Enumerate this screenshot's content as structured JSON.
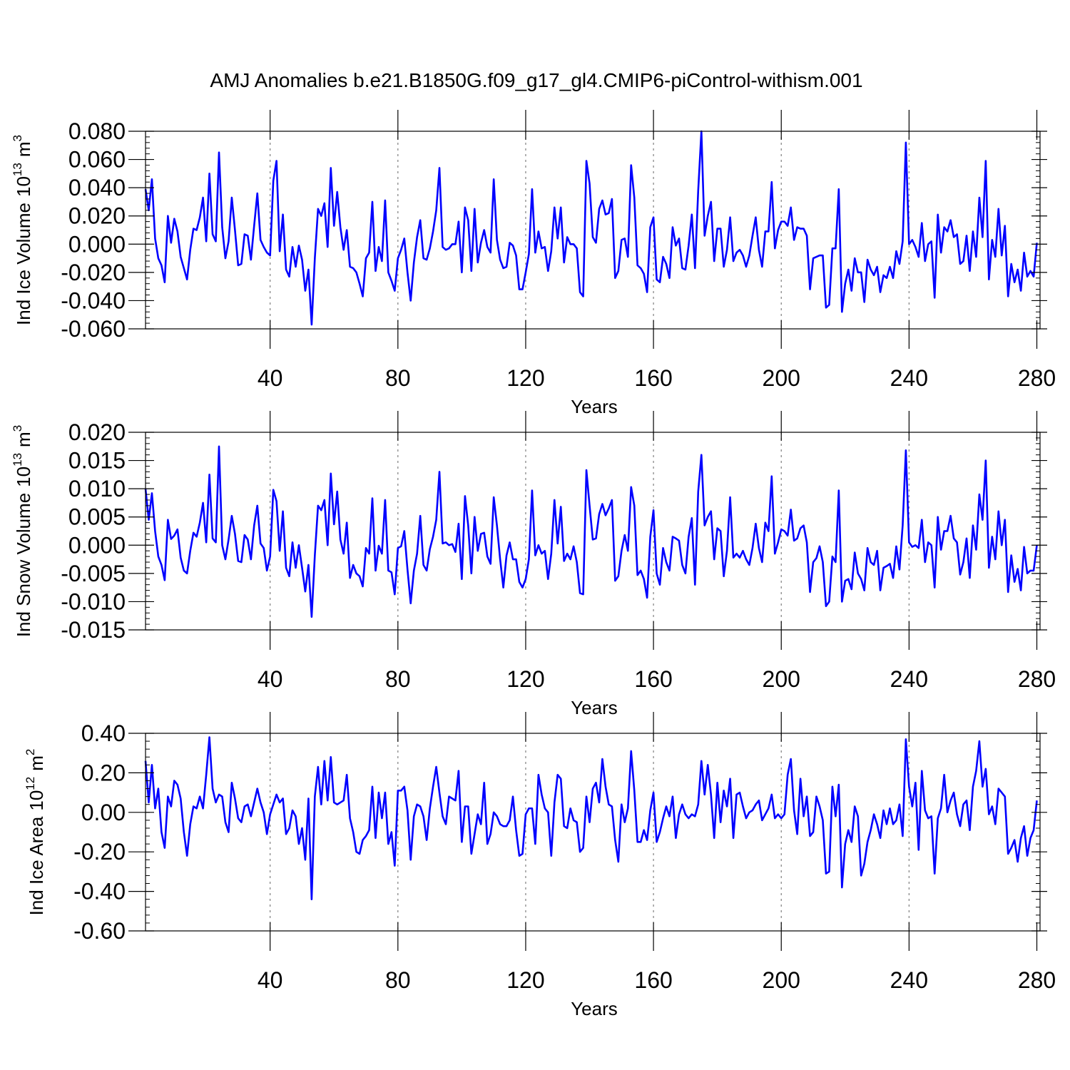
{
  "title": "AMJ Anomalies b.e21.B1850G.f09_g17_gl4.CMIP6-piControl-withism.001",
  "colors": {
    "line": "#0000ff",
    "axis": "#000000",
    "grid": "#7f7f7f"
  },
  "chart_data": [
    {
      "type": "line",
      "id": "ice-volume",
      "ylabel": "Ind Ice Volume",
      "ylabel_unit": {
        "base": "10",
        "exp": "13",
        "unit": "m",
        "unit_exp": "3"
      },
      "xlabel": "Years",
      "xlim": [
        1,
        281
      ],
      "ylim": [
        -0.06,
        0.08
      ],
      "xticks": [
        40,
        80,
        120,
        160,
        200,
        240,
        280
      ],
      "xtick_labels": [
        "40",
        "80",
        "120",
        "160",
        "200",
        "240",
        "280"
      ],
      "yticks": [
        -0.06,
        -0.04,
        -0.02,
        0.0,
        0.02,
        0.04,
        0.06,
        0.08
      ],
      "ytick_labels": [
        "-0.060",
        "-0.040",
        "-0.020",
        "0.000",
        "0.020",
        "0.040",
        "0.060",
        "0.080"
      ],
      "grid_x": [
        40,
        80,
        120,
        160,
        200,
        240
      ],
      "series": [
        {
          "name": "Ind Ice Volume",
          "x_start": 1,
          "values": [
            0.039,
            0.024,
            0.046,
            0.004,
            -0.01,
            -0.015,
            -0.027,
            0.02,
            0.001,
            0.018,
            0.009,
            -0.009,
            -0.017,
            -0.025,
            -0.004,
            0.011,
            0.01,
            0.019,
            0.033,
            0.002,
            0.05,
            0.007,
            0.002,
            0.065,
            0.012,
            -0.01,
            0.002,
            0.033,
            0.01,
            -0.015,
            -0.014,
            0.007,
            0.006,
            -0.011,
            0.013,
            0.036,
            0.003,
            -0.002,
            -0.006,
            -0.008,
            0.045,
            0.059,
            -0.005,
            0.021,
            -0.018,
            -0.023,
            -0.002,
            -0.016,
            -0.001,
            -0.011,
            -0.033,
            -0.018,
            -0.057,
            -0.01,
            0.025,
            0.02,
            0.029,
            -0.002,
            0.054,
            0.013,
            0.037,
            0.012,
            -0.004,
            0.01,
            -0.016,
            -0.017,
            -0.02,
            -0.028,
            -0.037,
            -0.01,
            -0.006,
            0.03,
            -0.019,
            -0.002,
            -0.012,
            0.031,
            -0.02,
            -0.026,
            -0.033,
            -0.01,
            -0.004,
            0.004,
            -0.02,
            -0.04,
            -0.013,
            0.005,
            0.017,
            -0.01,
            -0.011,
            -0.003,
            0.009,
            0.024,
            0.054,
            -0.002,
            -0.004,
            -0.003,
            0.0,
            0.0,
            0.016,
            -0.02,
            0.026,
            0.017,
            -0.019,
            0.025,
            -0.013,
            0.001,
            0.01,
            -0.002,
            -0.006,
            0.046,
            0.003,
            -0.011,
            -0.017,
            -0.016,
            0.001,
            -0.001,
            -0.008,
            -0.032,
            -0.032,
            -0.02,
            -0.007,
            0.039,
            -0.006,
            0.009,
            -0.003,
            -0.002,
            -0.019,
            -0.005,
            0.026,
            0.004,
            0.026,
            -0.013,
            0.005,
            0.0,
            0.0,
            -0.003,
            -0.034,
            -0.037,
            0.059,
            0.043,
            0.005,
            0.001,
            0.025,
            0.031,
            0.021,
            0.022,
            0.032,
            -0.024,
            -0.019,
            0.003,
            0.004,
            -0.009,
            0.056,
            0.033,
            -0.015,
            -0.017,
            -0.021,
            -0.034,
            0.012,
            0.019,
            -0.025,
            -0.027,
            -0.009,
            -0.014,
            -0.024,
            0.012,
            -0.001,
            0.004,
            -0.017,
            -0.018,
            -0.001,
            0.021,
            -0.017,
            0.038,
            0.08,
            0.006,
            0.02,
            0.03,
            -0.012,
            0.011,
            0.011,
            -0.016,
            -0.004,
            0.019,
            -0.012,
            -0.006,
            -0.004,
            -0.008,
            -0.016,
            -0.008,
            0.006,
            0.019,
            -0.004,
            -0.016,
            0.009,
            0.009,
            0.044,
            -0.003,
            0.01,
            0.016,
            0.016,
            0.013,
            0.026,
            0.003,
            0.012,
            0.011,
            0.011,
            0.006,
            -0.032,
            -0.01,
            -0.009,
            -0.008,
            -0.008,
            -0.045,
            -0.043,
            -0.003,
            -0.003,
            0.039,
            -0.048,
            -0.028,
            -0.018,
            -0.033,
            -0.01,
            -0.02,
            -0.02,
            -0.041,
            -0.011,
            -0.018,
            -0.022,
            -0.016,
            -0.034,
            -0.022,
            -0.024,
            -0.016,
            -0.024,
            -0.005,
            -0.014,
            0.002,
            0.072,
            0.0,
            0.003,
            -0.002,
            -0.009,
            0.015,
            -0.012,
            0.0,
            0.002,
            -0.038,
            0.021,
            -0.006,
            0.012,
            0.009,
            0.017,
            0.005,
            0.007,
            -0.014,
            -0.012,
            0.006,
            -0.019,
            0.009,
            -0.009,
            0.033,
            0.005,
            0.059,
            -0.025,
            0.003,
            -0.009,
            0.025,
            -0.008,
            0.013,
            -0.037,
            -0.014,
            -0.027,
            -0.018,
            -0.033,
            -0.006,
            -0.023,
            -0.019,
            -0.023,
            0.001
          ]
        }
      ]
    },
    {
      "type": "line",
      "id": "snow-volume",
      "ylabel": "Ind Snow Volume",
      "ylabel_unit": {
        "base": "10",
        "exp": "13",
        "unit": "m",
        "unit_exp": "3"
      },
      "xlabel": "Years",
      "xlim": [
        1,
        281
      ],
      "ylim": [
        -0.015,
        0.02
      ],
      "xticks": [
        40,
        80,
        120,
        160,
        200,
        240,
        280
      ],
      "xtick_labels": [
        "40",
        "80",
        "120",
        "160",
        "200",
        "240",
        "280"
      ],
      "yticks": [
        -0.015,
        -0.01,
        -0.005,
        0.0,
        0.005,
        0.01,
        0.015,
        0.02
      ],
      "ytick_labels": [
        "-0.015",
        "-0.010",
        "-0.005",
        "0.000",
        "0.005",
        "0.010",
        "0.015",
        "0.020"
      ],
      "grid_x": [
        40,
        80,
        120,
        160,
        200,
        240
      ],
      "series": [
        {
          "name": "Ind Snow Volume",
          "x_start": 1,
          "values": [
            0.01,
            0.0045,
            0.0092,
            0.0025,
            -0.002,
            -0.0035,
            -0.0062,
            0.0045,
            0.0011,
            0.0017,
            0.0028,
            -0.0022,
            -0.0045,
            -0.005,
            -0.001,
            0.0022,
            0.0015,
            0.004,
            0.0075,
            0.0005,
            0.0125,
            0.0012,
            0.0005,
            0.0175,
            0.0,
            -0.0025,
            0.001,
            0.0052,
            0.002,
            -0.0028,
            -0.003,
            0.0018,
            0.001,
            -0.0025,
            0.0035,
            0.007,
            0.0003,
            -0.0005,
            -0.0045,
            -0.002,
            0.0098,
            0.0078,
            -0.001,
            0.006,
            -0.004,
            -0.0055,
            0.0005,
            -0.004,
            0.0,
            -0.004,
            -0.0082,
            -0.0035,
            -0.0127,
            -0.0018,
            0.007,
            0.0062,
            0.008,
            0.0,
            0.0127,
            0.0037,
            0.0095,
            0.001,
            -0.0015,
            0.004,
            -0.0058,
            -0.0035,
            -0.005,
            -0.0055,
            -0.0073,
            -0.0005,
            -0.0015,
            0.0083,
            -0.0045,
            -0.0001,
            -0.0015,
            0.008,
            -0.0045,
            -0.0048,
            -0.0087,
            -0.0005,
            -0.0002,
            0.0025,
            -0.0043,
            -0.0103,
            -0.0045,
            -0.0015,
            0.0052,
            -0.0035,
            -0.0045,
            -0.0007,
            0.0015,
            0.0045,
            0.013,
            0.0003,
            0.0005,
            0.0,
            0.0002,
            -0.0012,
            0.0038,
            -0.006,
            0.0087,
            0.0035,
            -0.005,
            0.005,
            -0.001,
            0.002,
            0.0022,
            -0.002,
            -0.0033,
            0.0085,
            0.0035,
            -0.0025,
            -0.0075,
            -0.0018,
            0.0005,
            -0.0025,
            -0.0025,
            -0.0065,
            -0.0075,
            -0.006,
            -0.0025,
            0.0097,
            -0.0018,
            0.0,
            -0.0015,
            -0.001,
            -0.006,
            -0.0015,
            0.008,
            0.0003,
            0.0068,
            -0.0028,
            -0.0015,
            -0.0025,
            -0.0002,
            -0.003,
            -0.0085,
            -0.0087,
            0.0133,
            0.007,
            0.001,
            0.0012,
            0.0055,
            0.0073,
            0.0053,
            0.0065,
            0.008,
            -0.0063,
            -0.0055,
            -0.001,
            0.0018,
            -0.001,
            0.0103,
            0.007,
            -0.0053,
            -0.0045,
            -0.006,
            -0.0093,
            0.0015,
            0.0062,
            -0.005,
            -0.007,
            -0.0005,
            -0.003,
            -0.0045,
            0.0015,
            0.0012,
            0.0008,
            -0.0035,
            -0.005,
            0.0015,
            0.0048,
            -0.007,
            0.0095,
            0.016,
            0.0035,
            0.005,
            0.006,
            -0.0025,
            0.003,
            0.0025,
            -0.0055,
            -0.001,
            0.0085,
            -0.0022,
            -0.0015,
            -0.0022,
            -0.001,
            -0.0025,
            -0.0035,
            -0.0005,
            0.0038,
            -0.0005,
            -0.003,
            0.004,
            0.0025,
            0.0122,
            -0.0015,
            0.0005,
            0.0028,
            0.0025,
            0.0017,
            0.0063,
            0.0008,
            0.0012,
            0.003,
            0.0035,
            0.0005,
            -0.0083,
            -0.003,
            -0.0023,
            -0.0002,
            -0.003,
            -0.0108,
            -0.01,
            -0.002,
            -0.003,
            0.0097,
            -0.01,
            -0.0063,
            -0.006,
            -0.0078,
            -0.0013,
            -0.005,
            -0.006,
            -0.008,
            -0.0005,
            -0.003,
            -0.0035,
            -0.001,
            -0.008,
            -0.004,
            -0.0037,
            -0.0033,
            -0.0058,
            -0.0002,
            -0.0043,
            0.0035,
            0.0168,
            0.0005,
            -0.0003,
            0.0,
            -0.0005,
            0.0045,
            -0.003,
            0.0005,
            0.0,
            -0.0075,
            0.005,
            -0.0008,
            0.0025,
            0.0025,
            0.0052,
            0.0012,
            0.0005,
            -0.0052,
            -0.003,
            0.0012,
            -0.0058,
            0.0035,
            -0.0008,
            0.009,
            0.0045,
            0.015,
            -0.004,
            0.0015,
            -0.0025,
            0.006,
            0.0,
            0.0045,
            -0.0083,
            -0.0018,
            -0.0065,
            -0.0042,
            -0.008,
            -0.0003,
            -0.005,
            -0.0045,
            -0.0045,
            0.0
          ]
        }
      ]
    },
    {
      "type": "line",
      "id": "ice-area",
      "ylabel": "Ind Ice Area",
      "ylabel_unit": {
        "base": "10",
        "exp": "12",
        "unit": "m",
        "unit_exp": "2"
      },
      "xlabel": "Years",
      "xlim": [
        1,
        281
      ],
      "ylim": [
        -0.6,
        0.4
      ],
      "xticks": [
        40,
        80,
        120,
        160,
        200,
        240,
        280
      ],
      "xtick_labels": [
        "40",
        "80",
        "120",
        "160",
        "200",
        "240",
        "280"
      ],
      "yticks": [
        -0.6,
        -0.4,
        -0.2,
        0.0,
        0.2,
        0.4
      ],
      "ytick_labels": [
        "-0.60",
        "-0.40",
        "-0.20",
        "0.00",
        "0.20",
        "0.40"
      ],
      "grid_x": [
        40,
        80,
        120,
        160,
        200,
        240
      ],
      "series": [
        {
          "name": "Ind Ice Area",
          "x_start": 1,
          "values": [
            0.26,
            0.05,
            0.24,
            0.02,
            0.12,
            -0.1,
            -0.18,
            0.08,
            0.03,
            0.16,
            0.14,
            0.07,
            -0.1,
            -0.22,
            -0.06,
            0.03,
            0.02,
            0.08,
            0.02,
            0.19,
            0.38,
            0.12,
            0.05,
            0.09,
            0.08,
            -0.05,
            -0.1,
            0.15,
            0.07,
            -0.03,
            -0.05,
            0.03,
            0.04,
            -0.02,
            0.05,
            0.12,
            0.05,
            0.0,
            -0.11,
            -0.01,
            0.04,
            0.09,
            0.05,
            0.07,
            -0.11,
            -0.08,
            0.01,
            -0.02,
            -0.16,
            -0.08,
            -0.24,
            0.07,
            -0.44,
            0.08,
            0.23,
            0.04,
            0.26,
            0.06,
            0.28,
            0.05,
            0.04,
            0.05,
            0.06,
            0.19,
            -0.03,
            -0.1,
            -0.2,
            -0.21,
            -0.14,
            -0.12,
            -0.09,
            0.13,
            -0.13,
            0.1,
            -0.03,
            0.1,
            -0.16,
            -0.1,
            -0.27,
            0.11,
            0.11,
            0.13,
            0.01,
            -0.24,
            -0.02,
            0.04,
            0.03,
            -0.02,
            -0.14,
            0.02,
            0.13,
            0.23,
            0.1,
            -0.02,
            -0.06,
            0.08,
            0.07,
            0.06,
            0.21,
            -0.15,
            0.03,
            0.03,
            -0.21,
            -0.11,
            -0.01,
            -0.06,
            0.15,
            -0.16,
            -0.11,
            0.0,
            -0.02,
            -0.06,
            -0.07,
            -0.07,
            -0.04,
            0.08,
            -0.09,
            -0.22,
            -0.21,
            -0.01,
            0.02,
            0.02,
            -0.16,
            0.19,
            0.09,
            0.02,
            0.0,
            -0.22,
            0.05,
            0.19,
            0.17,
            -0.07,
            -0.08,
            0.02,
            -0.04,
            -0.05,
            -0.2,
            -0.18,
            0.08,
            -0.05,
            0.12,
            0.15,
            0.05,
            0.27,
            0.13,
            0.04,
            0.03,
            -0.14,
            -0.25,
            0.04,
            -0.05,
            0.02,
            0.31,
            0.11,
            -0.15,
            -0.15,
            -0.09,
            -0.14,
            0.01,
            0.1,
            -0.15,
            -0.1,
            -0.03,
            0.03,
            -0.02,
            0.08,
            -0.13,
            -0.01,
            0.04,
            -0.01,
            -0.03,
            -0.01,
            -0.02,
            0.04,
            0.26,
            0.09,
            0.24,
            0.09,
            -0.13,
            0.15,
            -0.05,
            0.11,
            0.03,
            0.17,
            -0.13,
            0.09,
            0.1,
            0.03,
            -0.03,
            0.0,
            0.01,
            0.04,
            0.06,
            -0.04,
            -0.01,
            0.02,
            0.09,
            -0.03,
            -0.01,
            -0.03,
            -0.01,
            0.19,
            0.27,
            0.01,
            -0.11,
            0.17,
            -0.02,
            0.08,
            -0.12,
            -0.1,
            0.08,
            0.03,
            -0.04,
            -0.31,
            -0.3,
            0.13,
            -0.02,
            0.14,
            -0.38,
            -0.16,
            -0.09,
            -0.15,
            0.03,
            -0.02,
            -0.32,
            -0.26,
            -0.15,
            -0.09,
            -0.01,
            -0.06,
            -0.13,
            0.01,
            -0.06,
            0.02,
            -0.06,
            -0.04,
            0.04,
            -0.12,
            0.37,
            0.13,
            0.03,
            0.15,
            -0.19,
            0.21,
            0.01,
            -0.03,
            -0.02,
            -0.31,
            -0.03,
            0.02,
            0.19,
            0.0,
            0.06,
            0.1,
            -0.01,
            -0.07,
            0.04,
            0.06,
            -0.09,
            0.13,
            0.21,
            0.36,
            0.13,
            0.22,
            -0.01,
            0.03,
            -0.06,
            0.12,
            0.1,
            0.08,
            -0.21,
            -0.18,
            -0.14,
            -0.25,
            -0.13,
            -0.07,
            -0.22,
            -0.13,
            -0.09,
            0.06
          ]
        }
      ]
    }
  ]
}
